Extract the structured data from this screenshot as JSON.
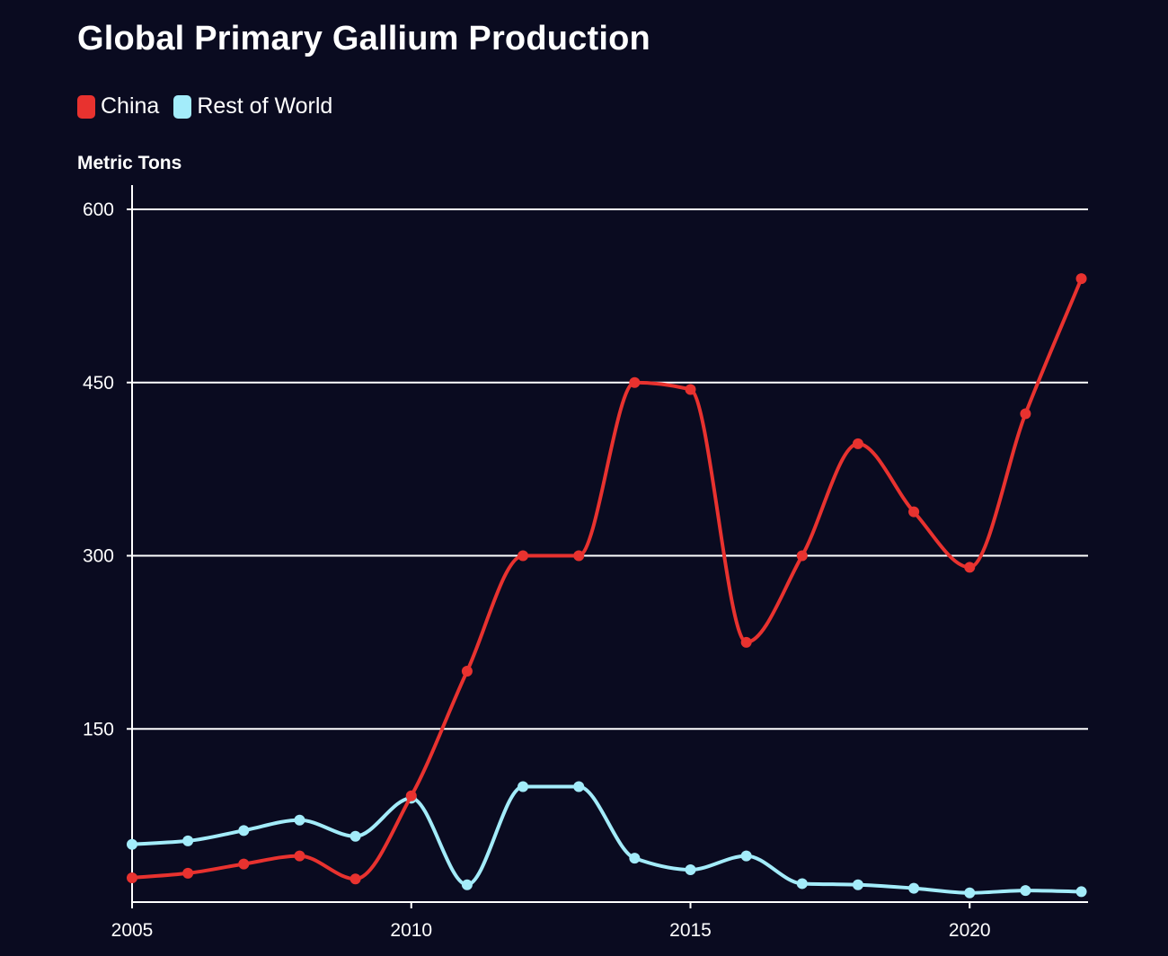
{
  "colors": {
    "background": "#0a0b20",
    "china": "#e8322f",
    "rest_of_world": "#a3ecfa",
    "gridline": "#ffffff",
    "axis": "#ffffff"
  },
  "chart_data": {
    "type": "line",
    "title": "Global Primary Gallium Production",
    "ylabel": "Metric Tons",
    "xlabel": "",
    "x": [
      2005,
      2006,
      2007,
      2008,
      2009,
      2010,
      2011,
      2012,
      2013,
      2014,
      2015,
      2016,
      2017,
      2018,
      2019,
      2020,
      2021,
      2022
    ],
    "series": [
      {
        "name": "China",
        "color": "#e8322f",
        "values": [
          21,
          25,
          33,
          40,
          20,
          92,
          200,
          300,
          300,
          450,
          444,
          225,
          300,
          397,
          338,
          290,
          423,
          540
        ]
      },
      {
        "name": "Rest of World",
        "color": "#a3ecfa",
        "values": [
          50,
          53,
          62,
          71,
          57,
          90,
          15,
          100,
          100,
          38,
          28,
          40,
          16,
          15,
          12,
          8,
          10,
          9
        ]
      }
    ],
    "xlim": [
      2005,
      2022.2
    ],
    "ylim": [
      0,
      620
    ],
    "yticks": [
      150,
      300,
      450,
      600
    ],
    "xticks": [
      2005,
      2010,
      2015,
      2020
    ],
    "grid": true,
    "legend": "top-left"
  }
}
